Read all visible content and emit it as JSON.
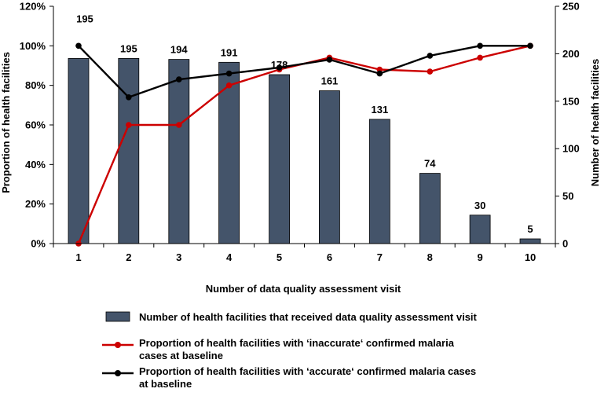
{
  "chart_data": {
    "type": "bar+line",
    "xlabel": "Number of data quality assessment visit",
    "ylabel_left": "Proportion of health facilities",
    "ylabel_right": "Number of health facilities",
    "categories": [
      "1",
      "2",
      "3",
      "4",
      "5",
      "6",
      "7",
      "8",
      "9",
      "10"
    ],
    "left_axis": {
      "min": 0,
      "max": 120,
      "step": 20,
      "tick_labels": [
        "0%",
        "20%",
        "40%",
        "60%",
        "80%",
        "100%",
        "120%"
      ]
    },
    "right_axis": {
      "min": 0,
      "max": 250,
      "step": 50,
      "tick_labels": [
        "0",
        "50",
        "100",
        "150",
        "200",
        "250"
      ]
    },
    "bars": {
      "name": "Number of health facilities that received data quality assessment visit",
      "axis": "right",
      "color": "#44546a",
      "values": [
        195,
        195,
        194,
        191,
        178,
        161,
        131,
        74,
        30,
        5
      ],
      "labels": [
        "195",
        "195",
        "194",
        "191",
        "178",
        "161",
        "131",
        "74",
        "30",
        "5"
      ]
    },
    "lines": [
      {
        "name_line1": "Proportion of health facilities with ‘inaccurate‘ confirmed malaria",
        "name_line2": "cases at baseline",
        "axis": "left",
        "color": "#cc0000",
        "values": [
          0,
          60,
          60,
          80,
          88,
          94,
          88,
          87,
          94,
          100
        ]
      },
      {
        "name_line1": "Proportion of health facilities with ‘accurate‘ confirmed malaria cases",
        "name_line2": "at baseline",
        "axis": "left",
        "color": "#000000",
        "values": [
          100,
          74,
          83,
          86,
          89,
          93,
          86,
          95,
          100,
          100
        ]
      }
    ]
  }
}
